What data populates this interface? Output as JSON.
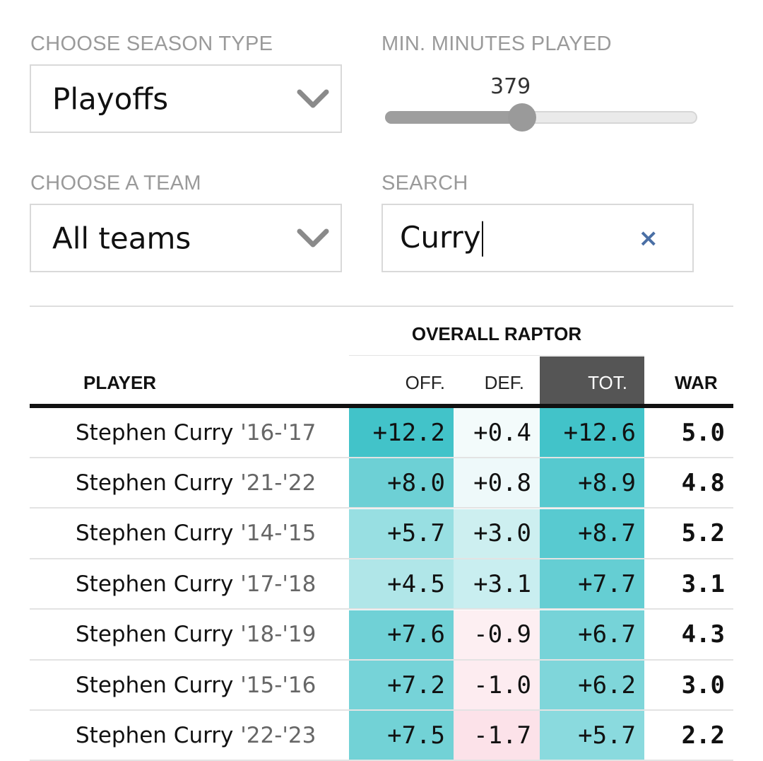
{
  "filters": {
    "season_type": {
      "label": "CHOOSE SEASON TYPE",
      "value": "Playoffs"
    },
    "min_minutes": {
      "label": "MIN. MINUTES PLAYED",
      "value": "379",
      "fraction": 0.44
    },
    "team": {
      "label": "CHOOSE A TEAM",
      "value": "All teams"
    },
    "search": {
      "label": "SEARCH",
      "value": "Curry",
      "clear_icon": "×"
    }
  },
  "table": {
    "group_header": "OVERALL RAPTOR",
    "columns": {
      "player": "PLAYER",
      "off": "OFF.",
      "def": "DEF.",
      "tot": "TOT.",
      "war": "WAR"
    },
    "rows": [
      {
        "name": "Stephen Curry",
        "season": "'16-'17",
        "off": "+12.2",
        "def": "+0.4",
        "tot": "+12.6",
        "war": "5.0",
        "off_color": "#42c3c9",
        "def_color": "#f3fbfb",
        "tot_color": "#42c3c9"
      },
      {
        "name": "Stephen Curry",
        "season": "'21-'22",
        "off": "+8.0",
        "def": "+0.8",
        "tot": "+8.9",
        "war": "4.8",
        "off_color": "#6dd0d5",
        "def_color": "#eef9fa",
        "tot_color": "#56c9cf"
      },
      {
        "name": "Stephen Curry",
        "season": "'14-'15",
        "off": "+5.7",
        "def": "+3.0",
        "tot": "+8.7",
        "war": "5.2",
        "off_color": "#98dfe2",
        "def_color": "#cdeff0",
        "tot_color": "#58cad0"
      },
      {
        "name": "Stephen Curry",
        "season": "'17-'18",
        "off": "+4.5",
        "def": "+3.1",
        "tot": "+7.7",
        "war": "3.1",
        "off_color": "#b0e6e8",
        "def_color": "#c9eef0",
        "tot_color": "#65ced3"
      },
      {
        "name": "Stephen Curry",
        "season": "'18-'19",
        "off": "+7.6",
        "def": "-0.9",
        "tot": "+6.7",
        "war": "4.3",
        "off_color": "#70d1d6",
        "def_color": "#fdeff2",
        "tot_color": "#76d3d8"
      },
      {
        "name": "Stephen Curry",
        "season": "'15-'16",
        "off": "+7.2",
        "def": "-1.0",
        "tot": "+6.2",
        "war": "3.0",
        "off_color": "#76d3d8",
        "def_color": "#fdecf0",
        "tot_color": "#7fd6da"
      },
      {
        "name": "Stephen Curry",
        "season": "'22-'23",
        "off": "+7.5",
        "def": "-1.7",
        "tot": "+5.7",
        "war": "2.2",
        "off_color": "#72d2d6",
        "def_color": "#fce2e9",
        "tot_color": "#8adade"
      }
    ]
  }
}
